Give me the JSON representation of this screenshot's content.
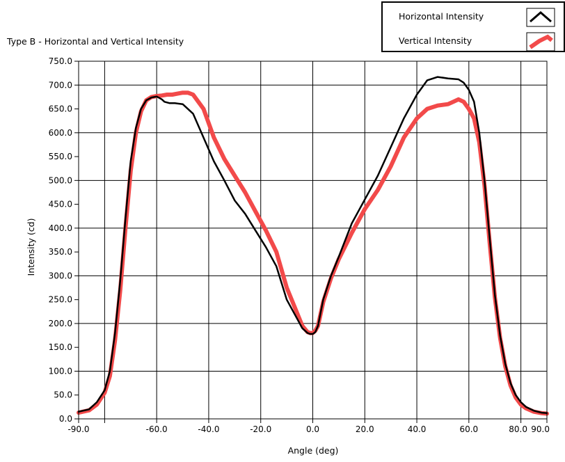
{
  "chart_data": {
    "type": "line",
    "title": "Type B - Horizontal and Vertical Intensity",
    "xlabel": "Angle (deg)",
    "ylabel": "Intensity (cd)",
    "xlim": [
      -90,
      90
    ],
    "ylim": [
      0,
      750
    ],
    "grid": true,
    "legend_position": "top-right",
    "x_ticks": [
      -90,
      -80,
      -60,
      -40,
      -20,
      0,
      20,
      40,
      60,
      80,
      90
    ],
    "x_tick_labels": [
      "-90.0",
      "",
      "-60.0",
      "-40.0",
      "-20.0",
      "0.0",
      "20.0",
      "40.0",
      "60.0",
      "80.0",
      "90.0"
    ],
    "x_gridlines": [
      -80,
      -60,
      -40,
      -20,
      0,
      20,
      40,
      60,
      80
    ],
    "y_ticks": [
      0,
      50,
      100,
      150,
      200,
      250,
      300,
      350,
      400,
      450,
      500,
      550,
      600,
      650,
      700,
      750
    ],
    "y_tick_labels": [
      "0.0",
      "50.0",
      "100.0",
      "150.0",
      "200.0",
      "250.0",
      "300.0",
      "350.0",
      "400.0",
      "450.0",
      "500.0",
      "550.0",
      "600.0",
      "650.0",
      "700.0",
      "750.0"
    ],
    "series": [
      {
        "name": "Horizontal  Intensity",
        "color": "#000000",
        "x": [
          -90,
          -86,
          -83,
          -80,
          -78,
          -76,
          -74,
          -72,
          -70,
          -68,
          -66,
          -64,
          -62,
          -60,
          -58,
          -57,
          -55,
          -53,
          -50,
          -46,
          -42,
          -38,
          -34,
          -30,
          -26,
          -22,
          -18,
          -14,
          -10,
          -7,
          -4,
          -2,
          -1,
          0,
          1,
          2,
          4,
          7,
          10,
          15,
          20,
          25,
          30,
          35,
          40,
          44,
          48,
          52,
          56,
          58,
          60,
          62,
          64,
          66,
          68,
          70,
          72,
          74,
          76,
          78,
          80,
          82,
          85,
          88,
          90
        ],
        "y": [
          15,
          20,
          35,
          60,
          100,
          180,
          290,
          420,
          540,
          610,
          650,
          668,
          674,
          676,
          670,
          665,
          662,
          662,
          660,
          640,
          590,
          540,
          500,
          458,
          430,
          395,
          360,
          320,
          250,
          220,
          190,
          180,
          178,
          178,
          182,
          195,
          250,
          300,
          340,
          410,
          460,
          510,
          570,
          630,
          680,
          710,
          717,
          714,
          712,
          705,
          690,
          665,
          600,
          500,
          380,
          260,
          175,
          115,
          75,
          50,
          35,
          25,
          17,
          13,
          12
        ]
      },
      {
        "name": "Vertical Intensity",
        "color": "#f24a4a",
        "x": [
          -90,
          -86,
          -83,
          -80,
          -78,
          -76,
          -74,
          -72,
          -70,
          -68,
          -66,
          -64,
          -62,
          -60,
          -58,
          -56,
          -54,
          -52,
          -50,
          -48,
          -46,
          -42,
          -38,
          -34,
          -30,
          -26,
          -22,
          -18,
          -14,
          -10,
          -7,
          -4,
          -2,
          -1,
          0,
          1,
          2,
          4,
          7,
          10,
          15,
          20,
          25,
          30,
          35,
          40,
          44,
          48,
          52,
          54,
          56,
          58,
          60,
          62,
          64,
          66,
          68,
          70,
          72,
          74,
          76,
          78,
          80,
          82,
          85,
          88,
          90
        ],
        "y": [
          13,
          18,
          30,
          55,
          90,
          165,
          270,
          400,
          520,
          600,
          645,
          668,
          675,
          677,
          678,
          680,
          680,
          682,
          684,
          684,
          680,
          650,
          590,
          545,
          510,
          475,
          435,
          395,
          350,
          275,
          235,
          195,
          182,
          180,
          180,
          185,
          195,
          245,
          295,
          335,
          390,
          440,
          480,
          530,
          590,
          630,
          650,
          657,
          660,
          665,
          670,
          665,
          650,
          630,
          580,
          490,
          370,
          255,
          170,
          110,
          70,
          45,
          30,
          22,
          15,
          12,
          11
        ]
      }
    ]
  },
  "legend": {
    "items": [
      {
        "label": "Horizontal  Intensity",
        "color": "#000000",
        "icon": "black-line-sample-icon"
      },
      {
        "label": "Vertical Intensity",
        "color": "#f24a4a",
        "icon": "red-line-sample-icon"
      }
    ]
  }
}
